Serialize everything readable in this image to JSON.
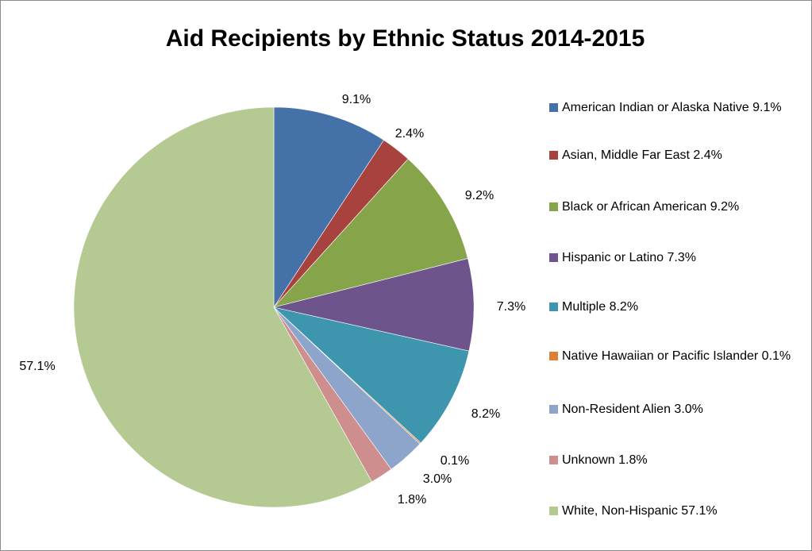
{
  "chart_data": {
    "type": "pie",
    "title": "Aid Recipients by Ethnic Status 2014-2015",
    "start_angle_deg": 0,
    "direction": "clockwise",
    "legend_position": "right",
    "slices": [
      {
        "name": "American Indian or Alaska Native",
        "value": 9.1,
        "label": "9.1%",
        "legend": "American Indian or Alaska Native 9.1%",
        "color": "#4472a8"
      },
      {
        "name": "Asian, Middle Far East",
        "value": 2.4,
        "label": "2.4%",
        "legend": "Asian, Middle Far East 2.4%",
        "color": "#a8423f"
      },
      {
        "name": "Black or African American",
        "value": 9.2,
        "label": "9.2%",
        "legend": "Black or African American 9.2%",
        "color": "#86a44a"
      },
      {
        "name": "Hispanic or Latino",
        "value": 7.3,
        "label": "7.3%",
        "legend": "Hispanic or Latino 7.3%",
        "color": "#6e548d"
      },
      {
        "name": "Multiple",
        "value": 8.2,
        "label": "8.2%",
        "legend": "Multiple 8.2%",
        "color": "#3d96ae"
      },
      {
        "name": "Native Hawaiian or Pacific Islander",
        "value": 0.1,
        "label": "0.1%",
        "legend": "Native Hawaiian or Pacific Islander 0.1%",
        "color": "#da8137"
      },
      {
        "name": "Non-Resident Alien",
        "value": 3.0,
        "label": "3.0%",
        "legend": "Non-Resident Alien 3.0%",
        "color": "#8ea5cb"
      },
      {
        "name": "Unknown",
        "value": 1.8,
        "label": "1.8%",
        "legend": "Unknown 1.8%",
        "color": "#ce8e8d"
      },
      {
        "name": "White, Non-Hispanic",
        "value": 57.1,
        "label": "57.1%",
        "legend": "White, Non-Hispanic 57.1%",
        "color": "#b5ca92"
      }
    ]
  }
}
